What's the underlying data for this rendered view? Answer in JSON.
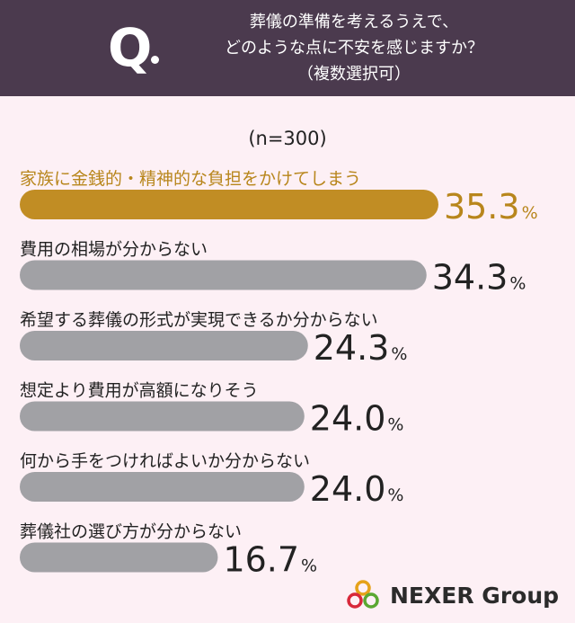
{
  "question": {
    "mark": "Q",
    "lines": [
      "葬儀の準備を考えるうえで、",
      "どのような点に不安を感じますか？",
      "（複数選択可）"
    ]
  },
  "sample_label": "(n=300)",
  "brand": {
    "name": "NEXER Group"
  },
  "colors": {
    "header_bg": "#4b3a4e",
    "page_bg": "#fdf0f5",
    "highlight_bar": "#c18d24",
    "bar": "#a1a1a5",
    "highlight_text": "#b8861c"
  },
  "chart_data": {
    "type": "bar",
    "orientation": "horizontal",
    "unit": "%",
    "categories": [
      "家族に金銭的・精神的な負担をかけてしまう",
      "費用の相場が分からない",
      "希望する葬儀の形式が実現できるか分からない",
      "想定より費用が高額になりそう",
      "何から手をつければよいか分からない",
      "葬儀社の選び方が分からない"
    ],
    "values": [
      35.3,
      34.3,
      24.3,
      24.0,
      24.0,
      16.7
    ],
    "value_labels": [
      "35.3",
      "34.3",
      "24.3",
      "24.0",
      "24.0",
      "16.7"
    ],
    "highlight_index": 0
  }
}
